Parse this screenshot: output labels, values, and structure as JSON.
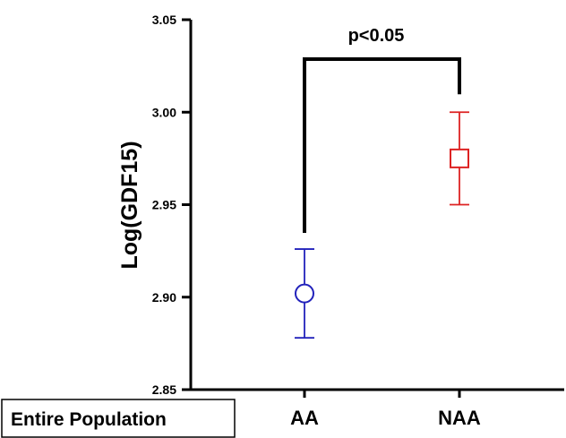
{
  "chart_data": {
    "type": "scatter",
    "title": "",
    "xlabel": "",
    "ylabel": "Log(GDF15)",
    "ylim": [
      2.85,
      3.05
    ],
    "yticks": [
      "2.85",
      "2.90",
      "2.95",
      "3.00",
      "3.05"
    ],
    "categories": [
      "AA",
      "NAA"
    ],
    "series": [
      {
        "category": "AA",
        "mean": 2.902,
        "error_low": 2.878,
        "error_high": 2.926,
        "marker": "circle",
        "color": "#2222bb"
      },
      {
        "category": "NAA",
        "mean": 2.975,
        "error_low": 2.95,
        "error_high": 3.0,
        "marker": "square",
        "color": "#dd2222"
      }
    ],
    "annotation": "p<0.05",
    "group_label": "Entire Population",
    "grid": false
  }
}
